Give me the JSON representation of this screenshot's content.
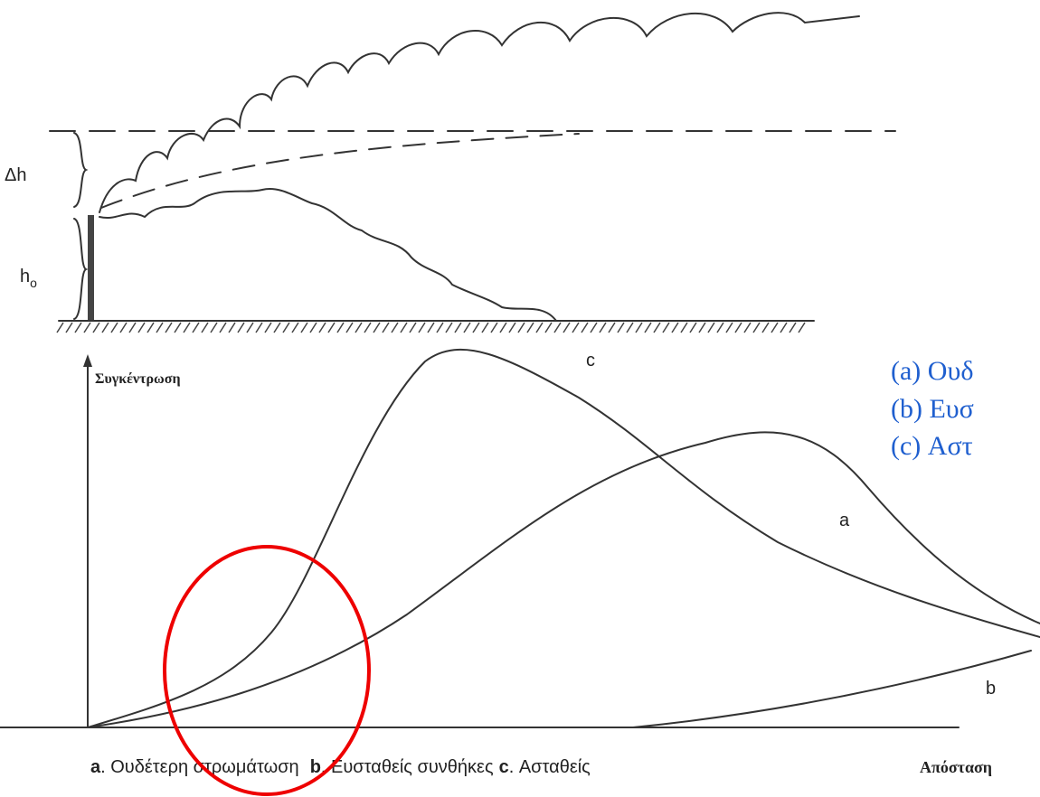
{
  "labels": {
    "delta_h": "Δh",
    "h0": "h",
    "h0_sub": "o",
    "y_axis": "Συγκέντρωση",
    "x_axis": "Απόσταση",
    "curve_c": "c",
    "curve_a": "a",
    "curve_b": "b"
  },
  "caption": [
    {
      "key": "a",
      "text": ". Ουδέτερη στρωμάτωση"
    },
    {
      "key": "b",
      "text": ". Ευσταθείς συνθήκες"
    },
    {
      "key": "c",
      "text": ". Ασταθείς"
    }
  ],
  "blue_legend": [
    "(a) Ουδ",
    "(b) Ευσ",
    "(c) Αστ"
  ]
}
